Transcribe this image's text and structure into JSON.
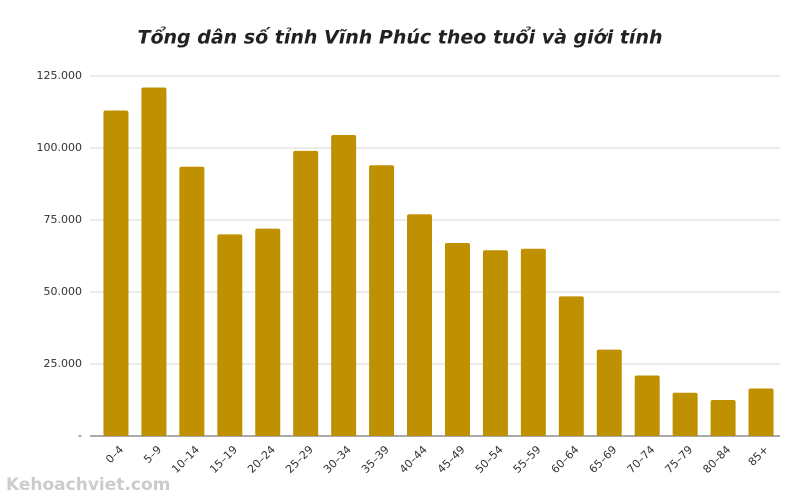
{
  "chart_data": {
    "type": "bar",
    "title": "Tổng dân số tỉnh Vĩnh Phúc theo tuổi và giới tính",
    "categories": [
      "0–4",
      "5–9",
      "10–14",
      "15–19",
      "20–24",
      "25–29",
      "30–34",
      "35–39",
      "40–44",
      "45–49",
      "50–54",
      "55–59",
      "60–64",
      "65–69",
      "70–74",
      "75–79",
      "80–84",
      "85+"
    ],
    "values": [
      113000,
      121000,
      93500,
      70000,
      72000,
      99000,
      104500,
      94000,
      77000,
      67000,
      64500,
      65000,
      48500,
      30000,
      21000,
      15000,
      12500,
      16500
    ],
    "color": "#bf9000",
    "ylim": [
      0,
      125000
    ],
    "yticks": [
      {
        "value": 0,
        "label": "-"
      },
      {
        "value": 25000,
        "label": "25.000"
      },
      {
        "value": 50000,
        "label": "50.000"
      },
      {
        "value": 75000,
        "label": "75.000"
      },
      {
        "value": 100000,
        "label": "100.000"
      },
      {
        "value": 125000,
        "label": "125.000"
      }
    ],
    "grid": true,
    "watermark": "Kehoachviet.com"
  }
}
